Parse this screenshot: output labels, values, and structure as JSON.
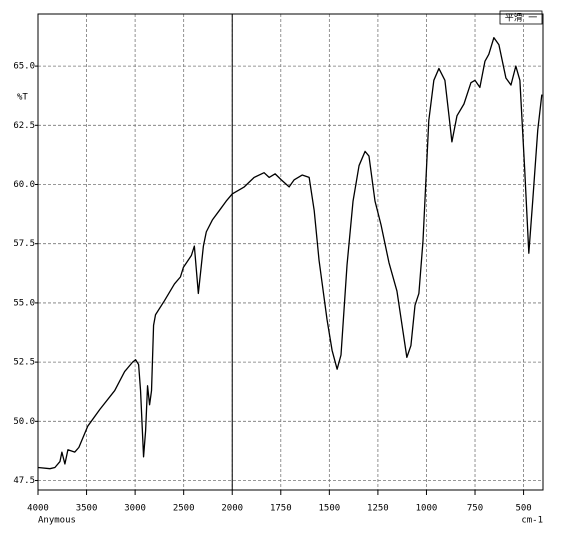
{
  "chart_data": {
    "type": "line",
    "y_label": "%T",
    "x_label": "Anymous",
    "x_unit": "cm-1",
    "legend_text": "平滑 一",
    "x": [
      4000,
      3877,
      3826,
      3774,
      3754,
      3723,
      3692,
      3621,
      3579,
      3487,
      3364,
      3210,
      3108,
      3026,
      2995,
      2964,
      2944,
      2913,
      2892,
      2872,
      2851,
      2831,
      2810,
      2790,
      2697,
      2595,
      2533,
      2503,
      2421,
      2390,
      2349,
      2297,
      2267,
      2205,
      2133,
      2062,
      2000,
      1938,
      1887,
      1836,
      1810,
      1779,
      1748,
      1707,
      1681,
      1640,
      1604,
      1578,
      1553,
      1512,
      1486,
      1460,
      1440,
      1409,
      1378,
      1347,
      1316,
      1296,
      1265,
      1234,
      1193,
      1152,
      1121,
      1101,
      1080,
      1059,
      1039,
      1018,
      988,
      962,
      936,
      905,
      884,
      869,
      843,
      807,
      771,
      750,
      725,
      699,
      679,
      653,
      627,
      591,
      565,
      540,
      519,
      494,
      473,
      453,
      427,
      406
    ],
    "values": [
      48.05,
      48.0,
      48.05,
      48.3,
      48.7,
      48.2,
      48.8,
      48.7,
      48.9,
      49.8,
      50.5,
      51.3,
      52.1,
      52.5,
      52.6,
      52.4,
      51.3,
      48.5,
      49.6,
      51.5,
      50.7,
      51.3,
      54.05,
      54.5,
      55.1,
      55.8,
      56.1,
      56.5,
      57.0,
      57.4,
      55.4,
      57.4,
      58.0,
      58.5,
      58.9,
      59.3,
      59.6,
      59.9,
      60.3,
      60.5,
      60.3,
      60.45,
      60.2,
      59.9,
      60.2,
      60.4,
      60.3,
      58.9,
      56.8,
      54.3,
      53.0,
      52.2,
      52.8,
      56.6,
      59.3,
      60.8,
      61.4,
      61.2,
      59.3,
      58.3,
      56.7,
      55.5,
      53.8,
      52.7,
      53.2,
      54.9,
      55.4,
      57.6,
      62.7,
      64.4,
      64.9,
      64.4,
      62.9,
      61.8,
      62.9,
      63.4,
      64.3,
      64.4,
      64.1,
      65.2,
      65.5,
      66.2,
      65.9,
      64.5,
      64.2,
      65.0,
      64.4,
      60.6,
      57.1,
      59.3,
      62.3,
      63.8
    ],
    "color": "#000000",
    "xlim": [
      4000,
      400
    ],
    "x_scale_break": 2000,
    "x_scale_ratio": 2,
    "xticks": [
      4000,
      3500,
      3000,
      2500,
      2000,
      1750,
      1500,
      1250,
      1000,
      750,
      500
    ],
    "ylim": [
      47.1,
      67.2
    ],
    "yticks": [
      47.5,
      {
        "value": 50,
        "label": "50.0"
      },
      52.5,
      {
        "value": 55,
        "label": "55.0"
      },
      57.5,
      {
        "value": 60,
        "label": "60.0"
      },
      62.5,
      {
        "value": 65,
        "label": "65.0"
      }
    ],
    "grid": true,
    "marker_x": 2000
  }
}
